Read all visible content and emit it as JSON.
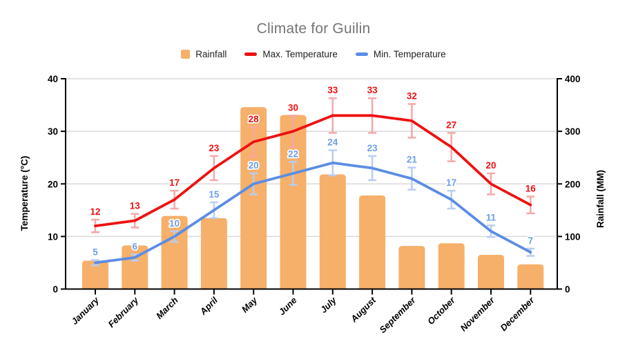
{
  "colors": {
    "background": "#ffffff",
    "title_text": "#757575",
    "legend_text": "#212121",
    "axis_text": "#000000",
    "axis_line": "#000000",
    "grid": "#d9d9d9"
  },
  "chart_data": {
    "type": "combo-bar-line",
    "title": "Climate for Guilin",
    "categories": [
      "January",
      "February",
      "March",
      "April",
      "May",
      "June",
      "July",
      "August",
      "September",
      "October",
      "November",
      "December"
    ],
    "series": [
      {
        "name": "Rainfall",
        "type": "bar",
        "axis": "right",
        "color": "#f6b06a",
        "values": [
          54,
          83,
          139,
          135,
          346,
          331,
          218,
          178,
          82,
          87,
          65,
          47
        ]
      },
      {
        "name": "Max. Temperature",
        "type": "line",
        "axis": "left",
        "color": "#ee1111",
        "error_color": "#f5a8a8",
        "label_color": "#ee1111",
        "error_bars": {
          "type": "percent",
          "value": 10
        },
        "values": [
          12,
          13,
          17,
          23,
          28,
          30,
          33,
          33,
          32,
          27,
          20,
          16
        ]
      },
      {
        "name": "Min. Temperature",
        "type": "line",
        "axis": "left",
        "color": "#5b8de4",
        "error_color": "#b8cdf2",
        "label_color": "#6d9eeb",
        "error_bars": {
          "type": "percent",
          "value": 10
        },
        "values": [
          5,
          6,
          10,
          15,
          20,
          22,
          24,
          23,
          21,
          17,
          11,
          7
        ]
      }
    ],
    "left_axis": {
      "label": "Temperature (°C)",
      "min": 0,
      "max": 40,
      "ticks": [
        0,
        10,
        20,
        30,
        40
      ]
    },
    "right_axis": {
      "label": "Rainfall (MM)",
      "min": 0,
      "max": 400,
      "ticks": [
        0,
        100,
        200,
        300,
        400
      ]
    },
    "grid": true,
    "legend_position": "top",
    "data_labels_on_lines": true
  }
}
